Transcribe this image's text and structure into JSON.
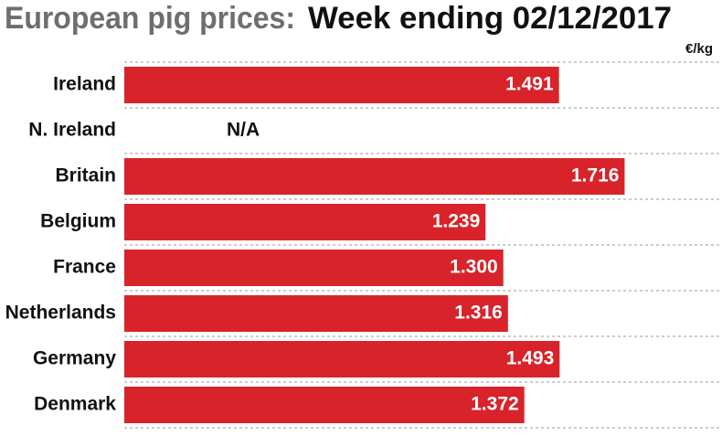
{
  "chart_data": {
    "type": "hbar",
    "title": "European pig prices:",
    "subtitle": "Week ending 02/12/2017",
    "unit": "€/kg",
    "categories": [
      "Ireland",
      "N. Ireland",
      "Britain",
      "Belgium",
      "France",
      "Netherlands",
      "Germany",
      "Denmark"
    ],
    "values": [
      1.491,
      null,
      1.716,
      1.239,
      1.3,
      1.316,
      1.493,
      1.372
    ],
    "value_labels": [
      "1.491",
      "N/A",
      "1.716",
      "1.239",
      "1.300",
      "1.316",
      "1.493",
      "1.372"
    ],
    "color": "#d8232a",
    "xlim": [
      0,
      2.05
    ]
  }
}
